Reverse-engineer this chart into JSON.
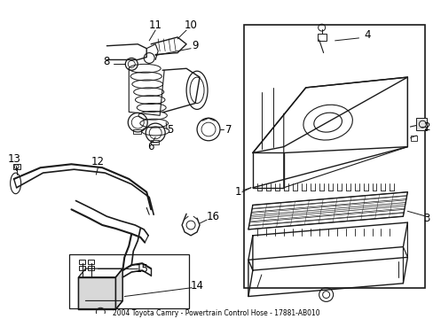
{
  "title": "2004 Toyota Camry - Powertrain Control Hose - 17881-AB010",
  "bg_color": "#ffffff",
  "line_color": "#1a1a1a",
  "label_color": "#000000",
  "fig_width": 4.89,
  "fig_height": 3.6,
  "dpi": 100
}
